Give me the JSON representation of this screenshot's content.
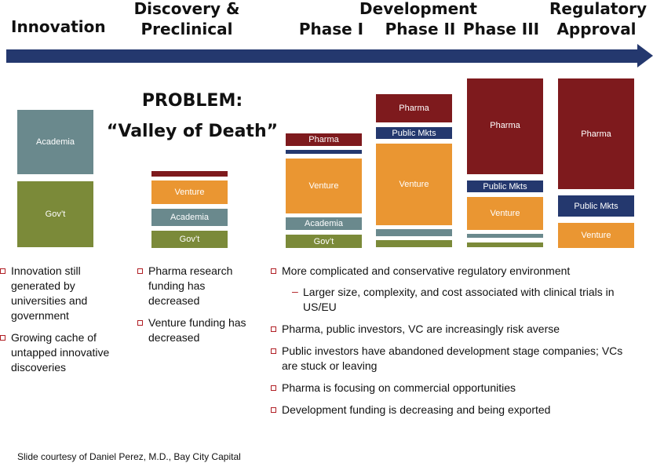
{
  "stages": {
    "innovation": "Innovation",
    "discovery_1": "Discovery &",
    "discovery_2": "Preclinical",
    "development": "Development",
    "phase1": "Phase I",
    "phase2": "Phase II",
    "phase3": "Phase III",
    "regulatory_1": "Regulatory",
    "regulatory_2": "Approval"
  },
  "problem": {
    "line1": "PROBLEM:",
    "line2": "“Valley of Death”"
  },
  "funding_labels": {
    "academia": "Academia",
    "gov": "Gov’t",
    "venture": "Venture",
    "pharma": "Pharma",
    "public": "Public Mkts"
  },
  "colors": {
    "pharma": "#7e1a1d",
    "public_mkts": "#24386e",
    "venture": "#ea9632",
    "academia": "#6a898d",
    "gov": "#7b8a39",
    "arrow": "#24386e",
    "bullet": "#b01e24"
  },
  "bullets": {
    "innovation": [
      "Innovation still generated by universities and government",
      "Growing cache of untapped innovative discoveries"
    ],
    "discovery": [
      "Pharma research funding has decreased",
      "Venture funding has decreased"
    ],
    "development": {
      "first": "More complicated and conservative regulatory environment",
      "sub": "Larger size, complexity, and cost associated with clinical trials in US/EU",
      "rest": [
        "Pharma, public investors, VC are increasingly risk averse",
        "Public investors have abandoned development stage companies; VCs are stuck or leaving",
        "Pharma is focusing on commercial opportunities",
        "Development funding is decreasing and being exported"
      ]
    }
  },
  "credit": "Slide courtesy of Daniel Perez, M.D., Bay City Capital"
}
